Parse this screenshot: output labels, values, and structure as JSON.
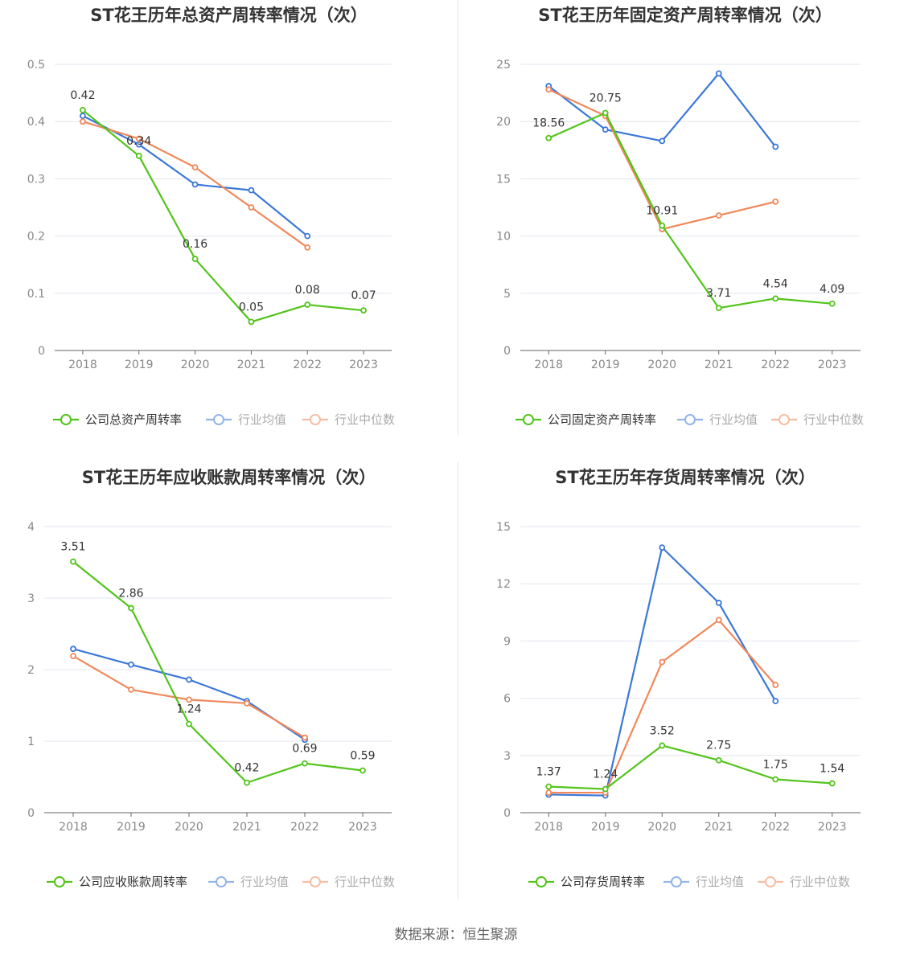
{
  "source_text": "数据来源：恒生聚源",
  "colors": {
    "company": "#52c41a",
    "avg": "#3c78d8",
    "median": "#f0885a"
  },
  "chart_data": [
    {
      "type": "line",
      "title": "ST花王历年总资产周转率情况（次）",
      "x": [
        "2018",
        "2019",
        "2020",
        "2021",
        "2022",
        "2023"
      ],
      "ylim": [
        0,
        0.5
      ],
      "yticks": [
        0,
        0.1,
        0.2,
        0.3,
        0.4,
        0.5
      ],
      "ytick_labels": [
        "0",
        "0.1",
        "0.2",
        "0.3",
        "0.4",
        "0.5"
      ],
      "series": [
        {
          "name": "公司总资产周转率",
          "values": [
            0.42,
            0.34,
            0.16,
            0.05,
            0.08,
            0.07
          ],
          "labels": [
            "0.42",
            "0.34",
            "0.16",
            "0.05",
            "0.08",
            "0.07"
          ]
        },
        {
          "name": "行业均值",
          "values": [
            0.41,
            0.36,
            0.29,
            0.28,
            0.2,
            null
          ]
        },
        {
          "name": "行业中位数",
          "values": [
            0.4,
            0.37,
            0.32,
            0.25,
            0.18,
            null
          ]
        }
      ]
    },
    {
      "type": "line",
      "title": "ST花王历年固定资产周转率情况（次）",
      "x": [
        "2018",
        "2019",
        "2020",
        "2021",
        "2022",
        "2023"
      ],
      "ylim": [
        0,
        25
      ],
      "yticks": [
        0,
        5,
        10,
        15,
        20,
        25
      ],
      "ytick_labels": [
        "0",
        "5",
        "10",
        "15",
        "20",
        "25"
      ],
      "series": [
        {
          "name": "公司固定资产周转率",
          "values": [
            18.56,
            20.75,
            10.91,
            3.71,
            4.54,
            4.09
          ],
          "labels": [
            "18.56",
            "20.75",
            "10.91",
            "3.71",
            "4.54",
            "4.09"
          ]
        },
        {
          "name": "行业均值",
          "values": [
            23.1,
            19.3,
            18.3,
            24.2,
            17.8,
            null
          ]
        },
        {
          "name": "行业中位数",
          "values": [
            22.8,
            20.5,
            10.6,
            11.8,
            13.0,
            null
          ]
        }
      ]
    },
    {
      "type": "line",
      "title": "ST花王历年应收账款周转率情况（次）",
      "x": [
        "2018",
        "2019",
        "2020",
        "2021",
        "2022",
        "2023"
      ],
      "ylim": [
        0,
        4
      ],
      "yticks": [
        0,
        1,
        2,
        3,
        4
      ],
      "ytick_labels": [
        "0",
        "1",
        "2",
        "3",
        "4"
      ],
      "series": [
        {
          "name": "公司应收账款周转率",
          "values": [
            3.51,
            2.86,
            1.24,
            0.42,
            0.69,
            0.59
          ],
          "labels": [
            "3.51",
            "2.86",
            "1.24",
            "0.42",
            "0.69",
            "0.59"
          ]
        },
        {
          "name": "行业均值",
          "values": [
            2.29,
            2.07,
            1.86,
            1.56,
            1.02,
            null
          ]
        },
        {
          "name": "行业中位数",
          "values": [
            2.19,
            1.72,
            1.58,
            1.53,
            1.05,
            null
          ]
        }
      ]
    },
    {
      "type": "line",
      "title": "ST花王历年存货周转率情况（次）",
      "x": [
        "2018",
        "2019",
        "2020",
        "2021",
        "2022",
        "2023"
      ],
      "ylim": [
        0,
        15
      ],
      "yticks": [
        0,
        3,
        6,
        9,
        12,
        15
      ],
      "ytick_labels": [
        "0",
        "3",
        "6",
        "9",
        "12",
        "15"
      ],
      "series": [
        {
          "name": "公司存货周转率",
          "values": [
            1.37,
            1.24,
            3.52,
            2.75,
            1.75,
            1.54
          ],
          "labels": [
            "1.37",
            "1.24",
            "3.52",
            "2.75",
            "1.75",
            "1.54"
          ]
        },
        {
          "name": "行业均值",
          "values": [
            0.95,
            0.9,
            13.9,
            11.0,
            5.85,
            null
          ]
        },
        {
          "name": "行业中位数",
          "values": [
            1.05,
            1.05,
            7.9,
            10.1,
            6.7,
            null
          ]
        }
      ]
    }
  ]
}
